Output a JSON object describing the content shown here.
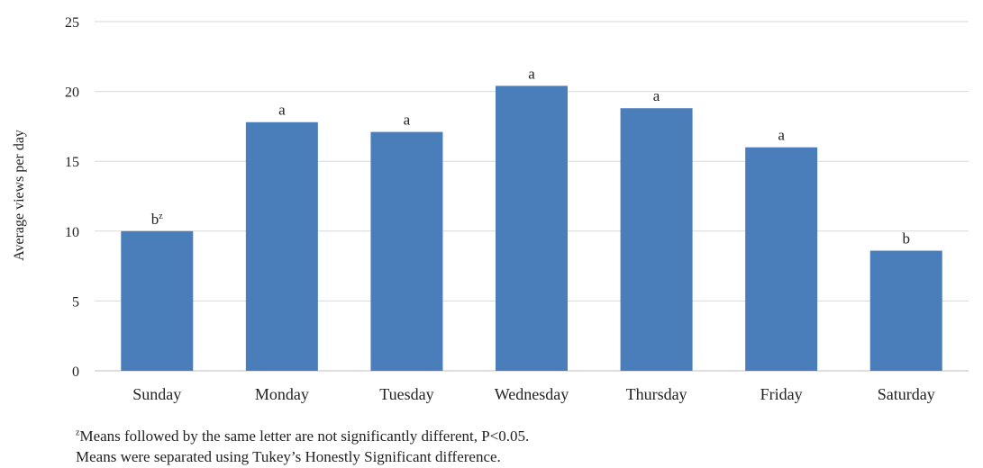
{
  "chart_data": {
    "type": "bar",
    "title": "",
    "xlabel": "",
    "ylabel": "Average views per day",
    "ylim": [
      0,
      25
    ],
    "yticks": [
      0,
      5,
      10,
      15,
      20,
      25
    ],
    "grid": true,
    "bar_color": "#4a7ebb",
    "grid_color": "#d9d9d9",
    "categories": [
      "Sunday",
      "Monday",
      "Tuesday",
      "Wednesday",
      "Thursday",
      "Friday",
      "Saturday"
    ],
    "values": [
      10.0,
      17.8,
      17.1,
      20.4,
      18.8,
      16.0,
      8.6
    ],
    "labels": [
      {
        "text": "b",
        "sup": "z"
      },
      {
        "text": "a",
        "sup": ""
      },
      {
        "text": "a",
        "sup": ""
      },
      {
        "text": "a",
        "sup": ""
      },
      {
        "text": "a",
        "sup": ""
      },
      {
        "text": "a",
        "sup": ""
      },
      {
        "text": "b",
        "sup": ""
      }
    ]
  },
  "footnotes": {
    "line1_sup": "z",
    "line1": "Means followed by the same letter are not significantly  different, P<0.05.",
    "line2": "Means were separated using Tukey’s Honestly Significant  difference."
  }
}
